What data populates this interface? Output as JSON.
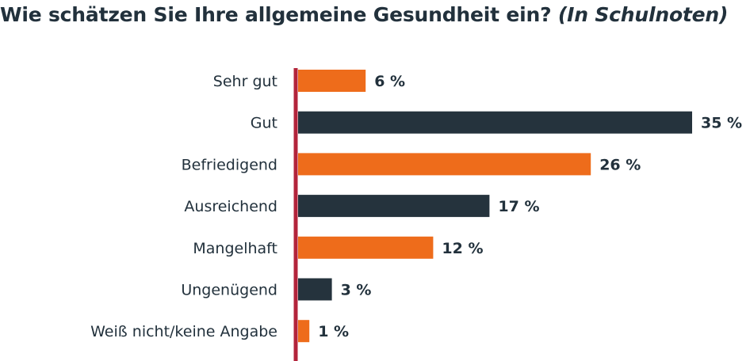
{
  "title": "Wie schätzen Sie Ihre allgemeine Gesundheit ein?",
  "title_note": "(In Schulnoten)",
  "colors": {
    "orange": "#ee6c1b",
    "navy": "#25333d",
    "axis": "#b3243b",
    "text": "#22313c"
  },
  "chart_data": {
    "type": "bar",
    "orientation": "horizontal",
    "title": "Wie schätzen Sie Ihre allgemeine Gesundheit ein? (In Schulnoten)",
    "xlabel": "",
    "ylabel": "",
    "unit": "%",
    "categories": [
      "Sehr gut",
      "Gut",
      "Befriedigend",
      "Ausreichend",
      "Mangelhaft",
      "Ungenügend",
      "Weiß nicht/keine Angabe"
    ],
    "values": [
      6,
      35,
      26,
      17,
      12,
      3,
      1
    ],
    "value_labels": [
      "6 %",
      "35 %",
      "26 %",
      "17 %",
      "12 %",
      "3 %",
      "1 %"
    ],
    "bar_colors": [
      "#ee6c1b",
      "#25333d",
      "#ee6c1b",
      "#25333d",
      "#ee6c1b",
      "#25333d",
      "#ee6c1b"
    ],
    "xlim": [
      0,
      35
    ],
    "grid": false,
    "legend": "none"
  }
}
